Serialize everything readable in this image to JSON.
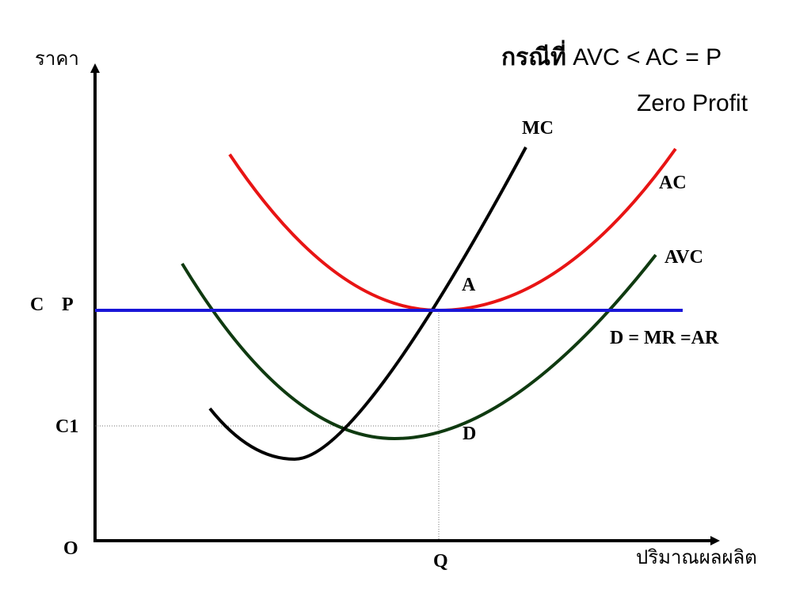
{
  "title": {
    "thai_bold": "กรณีที่",
    "formula": " AVC < AC = P",
    "subtitle": "Zero Profit"
  },
  "axes": {
    "y_label": "ราคา",
    "x_label": "ปริมาณผลผลิต",
    "origin_label": "O"
  },
  "labels": {
    "price_level_c": "C",
    "price_level_p": "P",
    "cost_level_c1": "C1",
    "quantity_q": "Q",
    "point_a": "A",
    "point_d": "D"
  },
  "curves": {
    "mc": {
      "name": "MC",
      "color": "#000000"
    },
    "ac": {
      "name": "AC",
      "color": "#e81414"
    },
    "avc": {
      "name": "AVC",
      "color": "#0f3a10"
    },
    "demand": {
      "name": "D = MR =AR",
      "color": "#1a16d8"
    }
  },
  "guides": {
    "color": "#777777"
  }
}
